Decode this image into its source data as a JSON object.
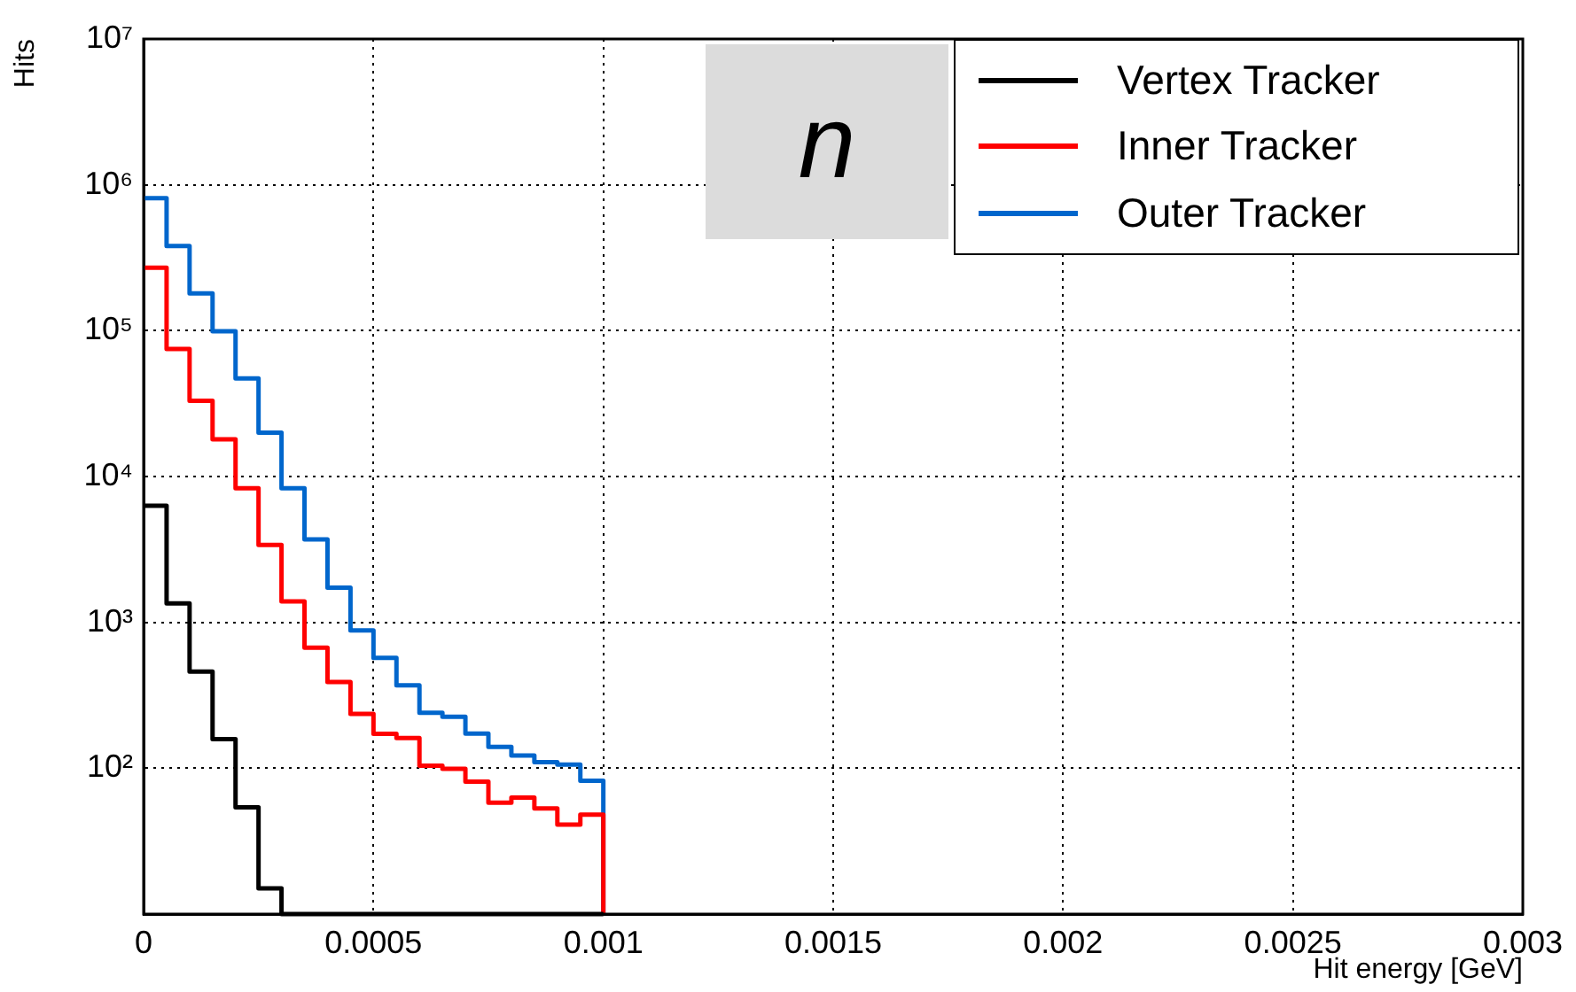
{
  "chart_data": {
    "type": "histogram",
    "xlabel": "Hit energy [GeV]",
    "ylabel": "Hits",
    "bins": [
      0,
      5e-05,
      0.0001,
      0.00015,
      0.0002,
      0.00025,
      0.0003,
      0.00035,
      0.0004,
      0.00045,
      0.0005,
      0.00055,
      0.0006,
      0.00065,
      0.0007,
      0.00075,
      0.0008,
      0.00085,
      0.0009,
      0.00095,
      0.001
    ],
    "series": [
      {
        "name": "Vertex Tracker",
        "color": "#000000",
        "values": [
          6300,
          1350,
          460,
          158,
          54,
          15,
          null,
          null,
          null,
          null,
          null,
          null,
          null,
          null,
          null,
          null,
          null,
          null,
          null,
          null
        ]
      },
      {
        "name": "Inner Tracker",
        "color": "#ff0000",
        "values": [
          270000,
          75000,
          33000,
          18000,
          8300,
          3400,
          1390,
          670,
          390,
          236,
          172,
          161,
          104,
          99,
          81,
          58,
          63,
          53,
          41,
          48
        ]
      },
      {
        "name": "Outer Tracker",
        "color": "#0066cc",
        "values": [
          810000,
          380000,
          180000,
          99000,
          47000,
          20000,
          8300,
          3700,
          1730,
          880,
          570,
          370,
          240,
          225,
          173,
          140,
          122,
          110,
          106,
          82
        ]
      }
    ],
    "xlim": [
      0,
      0.003
    ],
    "xticks": [
      0,
      0.0005,
      0.001,
      0.0015,
      0.002,
      0.0025,
      0.003
    ],
    "ylim": [
      10,
      10000000
    ],
    "yticks": [
      {
        "value": 100,
        "label": "10²"
      },
      {
        "value": 1000,
        "label": "10³"
      },
      {
        "value": 10000,
        "label": "10⁴"
      },
      {
        "value": 100000,
        "label": "10⁵"
      },
      {
        "value": 1000000,
        "label": "10⁶"
      },
      {
        "value": 10000000,
        "label": "10⁷"
      }
    ],
    "log": "y",
    "grid": true,
    "legend": "top right",
    "annotations": [
      "n"
    ]
  }
}
